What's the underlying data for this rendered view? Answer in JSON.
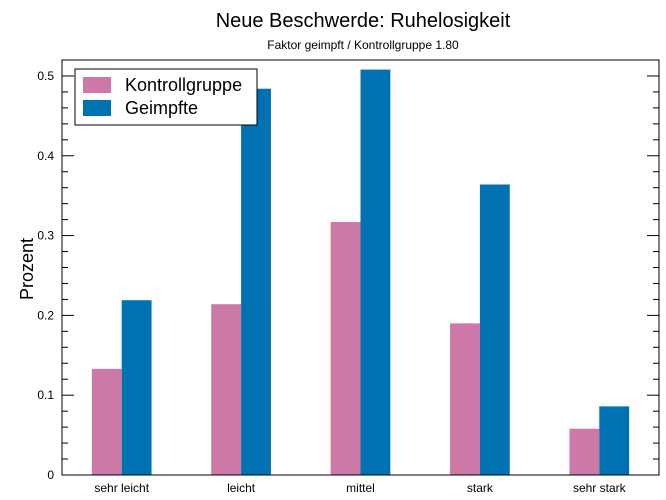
{
  "chart_data": {
    "type": "bar",
    "title": "Neue Beschwerde: Ruhelosigkeit",
    "subtitle": "Faktor geimpft / Kontrollgruppe 1.80",
    "xlabel": "",
    "ylabel": "Prozent",
    "categories": [
      "sehr leicht",
      "leicht",
      "mittel",
      "stark",
      "sehr stark"
    ],
    "series": [
      {
        "name": "Kontrollgruppe",
        "color": "#cc79a7",
        "values": [
          0.133,
          0.214,
          0.317,
          0.19,
          0.058
        ]
      },
      {
        "name": "Geimpfte",
        "color": "#0072b2",
        "values": [
          0.219,
          0.484,
          0.508,
          0.364,
          0.086
        ]
      }
    ],
    "ylim": [
      0,
      0.52
    ],
    "yticks": [
      0,
      0.1,
      0.2,
      0.3,
      0.4,
      0.5
    ],
    "ytick_labels": [
      "0",
      "0.1",
      "0.2",
      "0.3",
      "0.4",
      "0.5"
    ],
    "grid": false,
    "legend_position": "top-left"
  }
}
